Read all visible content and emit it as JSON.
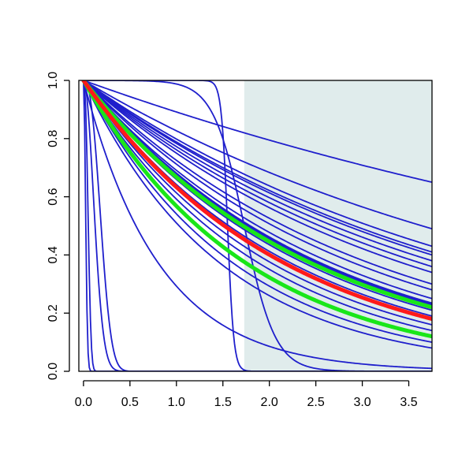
{
  "chart_data": {
    "type": "line",
    "title": "",
    "xlabel": "",
    "ylabel": "",
    "xlim": [
      -0.05,
      3.75
    ],
    "ylim": [
      0,
      1
    ],
    "x_ticks": [
      "0.0",
      "0.5",
      "1.0",
      "1.5",
      "2.0",
      "2.5",
      "3.0",
      "3.5"
    ],
    "y_ticks": [
      "0.0",
      "0.2",
      "0.4",
      "0.6",
      "0.8",
      "1.0"
    ],
    "grid": false,
    "shaded_region": {
      "x_start": 1.73,
      "x_end": 3.75,
      "color": "#e0ecec"
    },
    "colors": {
      "blue": "#1f1fcc",
      "red": "#ff1a1a",
      "green": "#19e619",
      "axis": "#000000"
    },
    "series": [
      {
        "kind": "exp",
        "y_at_max": 0.65,
        "color": "blue",
        "width": 1.8
      },
      {
        "kind": "exp",
        "y_at_max": 0.49,
        "color": "blue",
        "width": 1.8
      },
      {
        "kind": "exp",
        "y_at_max": 0.43,
        "color": "blue",
        "width": 1.8
      },
      {
        "kind": "exp",
        "y_at_max": 0.41,
        "color": "blue",
        "width": 1.8
      },
      {
        "kind": "exp",
        "y_at_max": 0.4,
        "color": "blue",
        "width": 1.8
      },
      {
        "kind": "exp",
        "y_at_max": 0.38,
        "color": "blue",
        "width": 1.8
      },
      {
        "kind": "exp",
        "y_at_max": 0.36,
        "color": "blue",
        "width": 1.8
      },
      {
        "kind": "exp",
        "y_at_max": 0.34,
        "color": "blue",
        "width": 1.8
      },
      {
        "kind": "exp",
        "y_at_max": 0.3,
        "color": "blue",
        "width": 1.8
      },
      {
        "kind": "exp",
        "y_at_max": 0.28,
        "color": "blue",
        "width": 1.8
      },
      {
        "kind": "exp",
        "y_at_max": 0.25,
        "color": "blue",
        "width": 1.8
      },
      {
        "kind": "exp",
        "y_at_max": 0.23,
        "color": "blue",
        "width": 1.8
      },
      {
        "kind": "exp",
        "y_at_max": 0.21,
        "color": "blue",
        "width": 1.8
      },
      {
        "kind": "exp",
        "y_at_max": 0.19,
        "color": "blue",
        "width": 1.8
      },
      {
        "kind": "exp",
        "y_at_max": 0.16,
        "color": "blue",
        "width": 1.8
      },
      {
        "kind": "exp",
        "y_at_max": 0.14,
        "color": "blue",
        "width": 1.8
      },
      {
        "kind": "exp",
        "y_at_max": 0.12,
        "color": "blue",
        "width": 1.8
      },
      {
        "kind": "exp",
        "y_at_max": 0.1,
        "color": "blue",
        "width": 1.8
      },
      {
        "kind": "exp",
        "y_at_max": 0.08,
        "color": "blue",
        "width": 1.8
      },
      {
        "kind": "exp",
        "y_at_max": 0.01,
        "color": "blue",
        "width": 1.8
      },
      {
        "kind": "logistic",
        "midpoint": 1.73,
        "steepness": 6,
        "color": "blue",
        "width": 1.8
      },
      {
        "kind": "logistic",
        "midpoint": 1.55,
        "steepness": 30,
        "color": "blue",
        "width": 1.8
      },
      {
        "kind": "weibull",
        "scale": 0.06,
        "shape": 2.5,
        "color": "blue",
        "width": 1.8
      },
      {
        "kind": "weibull",
        "scale": 0.15,
        "shape": 2.0,
        "color": "blue",
        "width": 1.8
      },
      {
        "kind": "weibull",
        "scale": 0.22,
        "shape": 2.5,
        "color": "blue",
        "width": 1.8
      },
      {
        "kind": "weibull",
        "scale": 0.03,
        "shape": 2.0,
        "color": "blue",
        "width": 1.8
      },
      {
        "kind": "exp",
        "y_at_max": 0.23,
        "color": "blue",
        "width": 5
      },
      {
        "kind": "exp",
        "y_at_max": 0.12,
        "color": "green",
        "width": 5
      },
      {
        "kind": "exp",
        "y_at_max": 0.22,
        "color": "green",
        "width": 5
      },
      {
        "kind": "exp",
        "y_at_max": 0.18,
        "color": "red",
        "width": 5
      }
    ]
  }
}
